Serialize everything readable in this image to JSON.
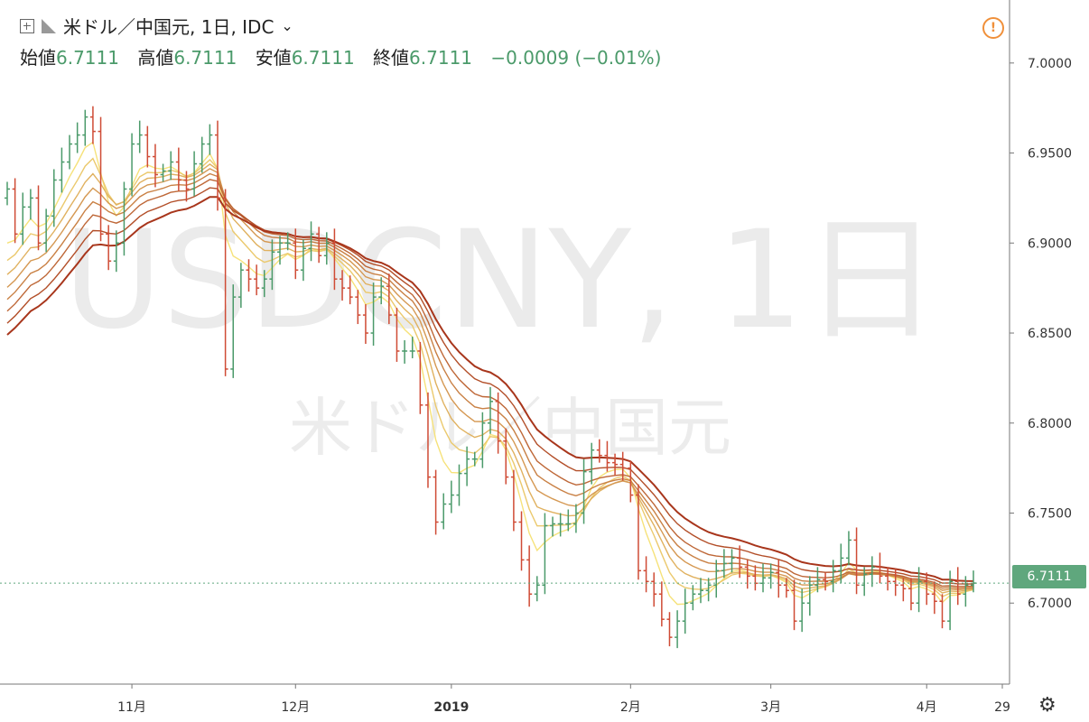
{
  "header": {
    "symbol_title": "米ドル／中国元, 1日, IDC",
    "dropdown_icon": "chevron-down-icon",
    "add_icon": "plus-box-icon",
    "alert_icon": "exclamation-circle-icon",
    "settings_icon": "gear-icon"
  },
  "ohlc": {
    "open_label": "始値",
    "open": "6.7111",
    "high_label": "高値",
    "high": "6.7111",
    "low_label": "安値",
    "low": "6.7111",
    "close_label": "終値",
    "close": "6.7111",
    "change": "−0.0009 (−0.01%)"
  },
  "watermark": {
    "main": "USDCNY, 1日",
    "sub": "米ドル／中国元"
  },
  "price_tag": "6.7111",
  "colors": {
    "up": "#4b9a6a",
    "down": "#cf4b35",
    "ema_light": "#f6e27a",
    "ema_dark": "#a8361c",
    "last_price_line": "#5fa77d"
  },
  "chart_data": {
    "type": "ohlc",
    "title": "米ドル／中国元, 1日, IDC",
    "y_axis": {
      "ylim": [
        6.655,
        7.035
      ],
      "ticks": [
        "7.0000",
        "6.9500",
        "6.9000",
        "6.8500",
        "6.8000",
        "6.7500",
        "6.7000"
      ],
      "position": "right"
    },
    "x_axis": {
      "tick_labels": [
        "11月",
        "12月",
        "2019",
        "2月",
        "3月",
        "4月",
        "29"
      ]
    },
    "last_price": 6.7111,
    "close_series": [
      6.93,
      6.905,
      6.92,
      6.925,
      6.9,
      6.915,
      6.935,
      6.945,
      6.955,
      6.96,
      6.97,
      6.962,
      6.905,
      6.89,
      6.9,
      6.93,
      6.955,
      6.96,
      6.948,
      6.938,
      6.94,
      6.945,
      6.935,
      6.93,
      6.944,
      6.955,
      6.96,
      6.925,
      6.83,
      6.87,
      6.885,
      6.88,
      6.875,
      6.88,
      6.895,
      6.9,
      6.9,
      6.885,
      6.897,
      6.905,
      6.893,
      6.9,
      6.88,
      6.875,
      6.87,
      6.86,
      6.85,
      6.87,
      6.876,
      6.86,
      6.84,
      6.84,
      6.84,
      6.81,
      6.77,
      6.745,
      6.755,
      6.76,
      6.772,
      6.78,
      6.78,
      6.8,
      6.812,
      6.79,
      6.77,
      6.745,
      6.724,
      6.705,
      6.71,
      6.743,
      6.744,
      6.744,
      6.744,
      6.75,
      6.773,
      6.785,
      6.782,
      6.778,
      6.777,
      6.775,
      6.76,
      6.718,
      6.712,
      6.705,
      6.691,
      6.681,
      6.69,
      6.7,
      6.705,
      6.707,
      6.71,
      6.718,
      6.722,
      6.725,
      6.72,
      6.715,
      6.711,
      6.714,
      6.717,
      6.71,
      6.707,
      6.69,
      6.7,
      6.71,
      6.713,
      6.712,
      6.718,
      6.725,
      6.735,
      6.71,
      6.716,
      6.72,
      6.715,
      6.712,
      6.71,
      6.708,
      6.7,
      6.712,
      6.705,
      6.701,
      6.69,
      6.712,
      6.705,
      6.71,
      6.7111
    ],
    "ema_ribbon": {
      "count": 8,
      "from_color": "#f6e27a",
      "to_color": "#a8361c"
    }
  }
}
